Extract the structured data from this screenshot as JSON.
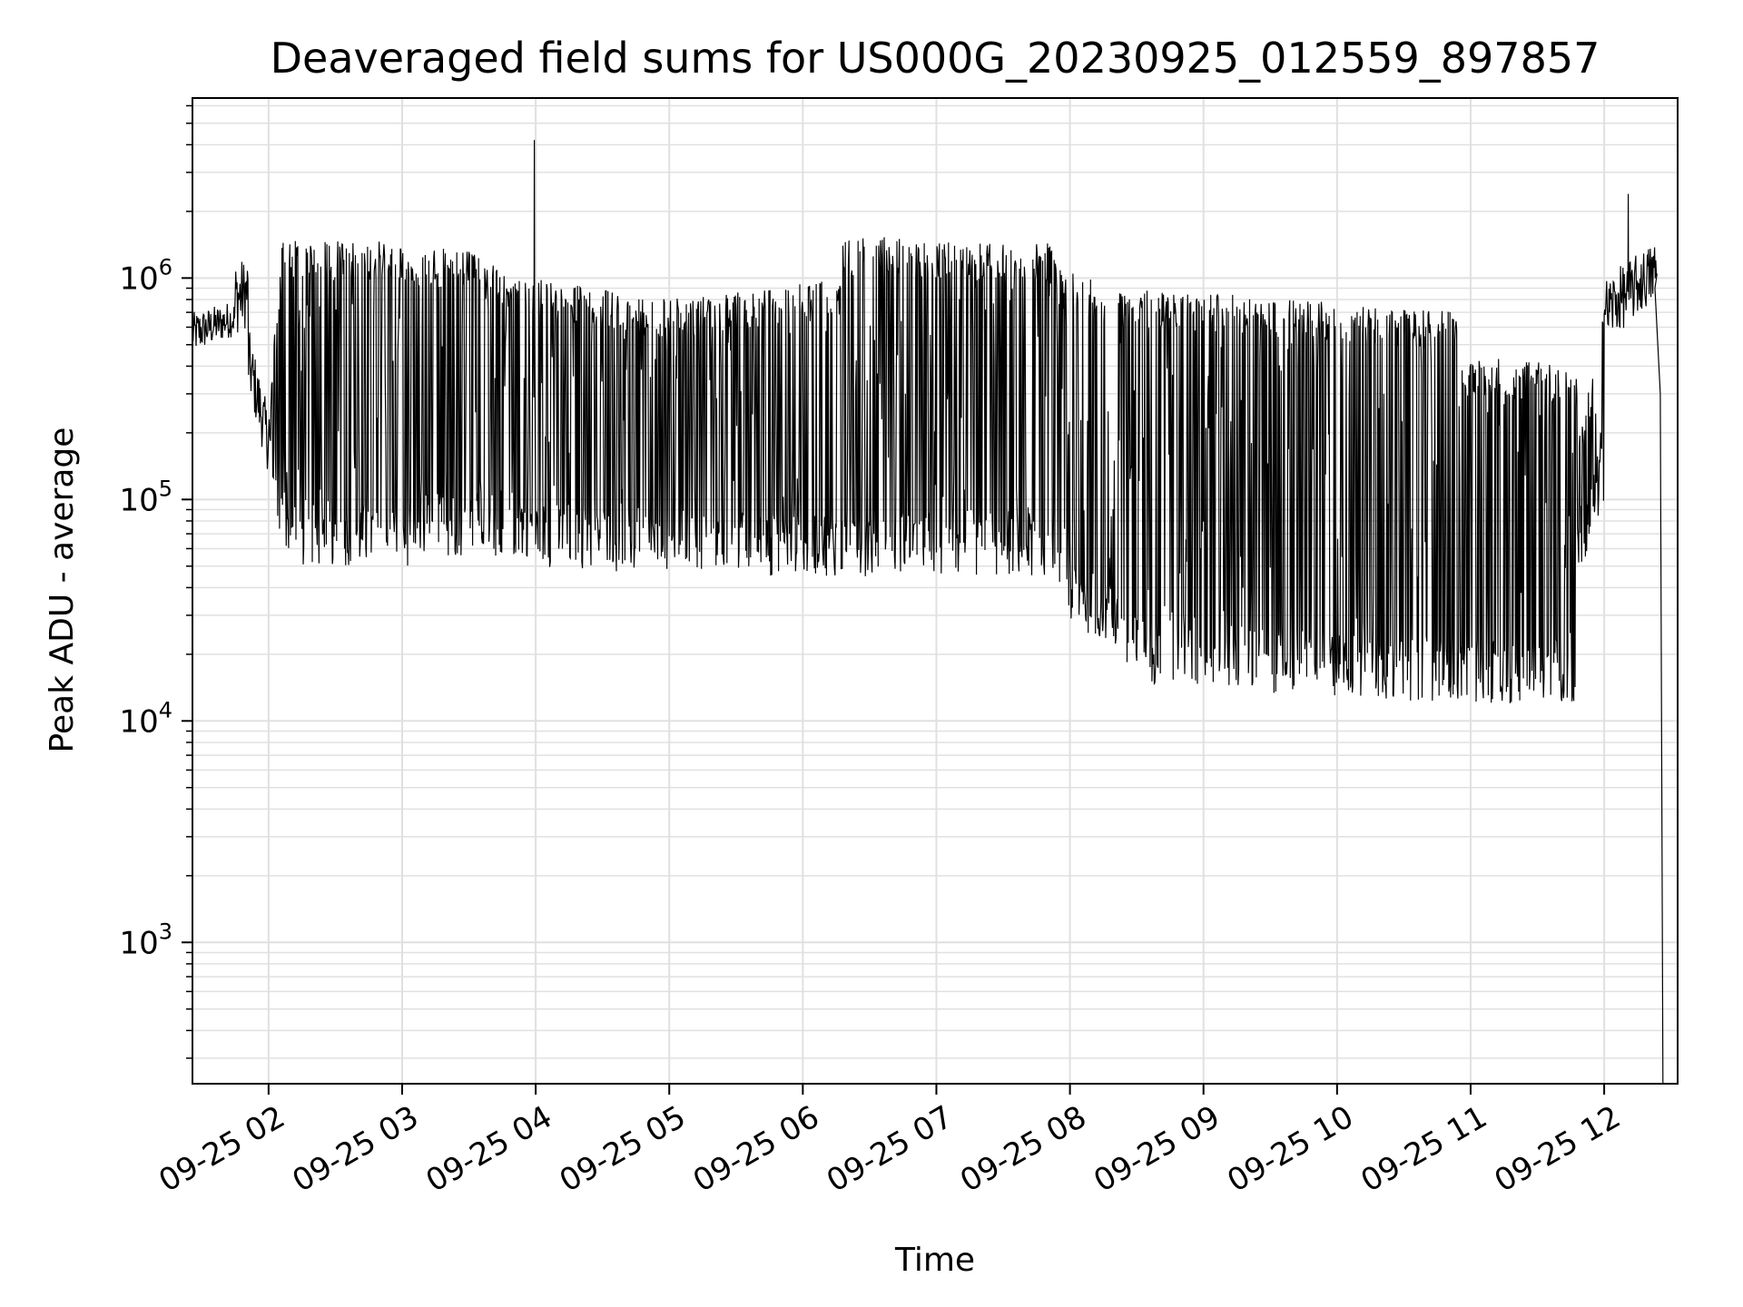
{
  "chart_data": {
    "type": "line",
    "title": "Deaveraged field sums for US000G_20230925_012559_897857",
    "xlabel": "Time",
    "ylabel": "Peak ADU - average",
    "y_scale": "log",
    "grid": true,
    "line_color": "#000000",
    "grid_color": "#e0e0e0",
    "x_tick_labels": [
      "09-25 02",
      "09-25 03",
      "09-25 04",
      "09-25 05",
      "09-25 06",
      "09-25 07",
      "09-25 08",
      "09-25 09",
      "09-25 10",
      "09-25 11",
      "09-25 12"
    ],
    "x_tick_hours": [
      2,
      3,
      4,
      5,
      6,
      7,
      8,
      9,
      10,
      11,
      12
    ],
    "xlim_hours": [
      1.43,
      12.55
    ],
    "ylim": [
      230,
      6500000
    ],
    "y_ticks": [
      {
        "value": 1000,
        "base": "10",
        "exp": "3"
      },
      {
        "value": 10000,
        "base": "10",
        "exp": "4"
      },
      {
        "value": 100000,
        "base": "10",
        "exp": "5"
      },
      {
        "value": 1000000,
        "base": "10",
        "exp": "6"
      }
    ],
    "series": [
      {
        "segments": [
          {
            "x": [
              1.43,
              1.75
            ],
            "low": [
              450000.0,
              550000.0
            ],
            "high": [
              700000.0,
              800000.0
            ]
          },
          {
            "x": [
              1.75,
              1.85
            ],
            "low": [
              550000.0,
              600000.0
            ],
            "high": [
              1200000.0,
              1250000.0
            ]
          },
          {
            "x": [
              1.85,
              2.0
            ],
            "low": [
              300000.0,
              130000.0
            ],
            "high": [
              600000.0,
              250000.0
            ]
          },
          {
            "x": [
              2.0,
              2.1
            ],
            "low": [
              130000.0,
              60000.0
            ],
            "high": [
              300000.0,
              1300000.0
            ]
          },
          {
            "x": [
              2.1,
              3.1
            ],
            "low": [
              50000.0,
              50000.0
            ],
            "high": [
              1500000.0,
              1450000.0
            ]
          },
          {
            "x": [
              3.1,
              3.6
            ],
            "low": [
              55000.0,
              55000.0
            ],
            "high": [
              1400000.0,
              1300000.0
            ]
          },
          {
            "x": [
              3.6,
              4.0
            ],
            "low": [
              55000.0,
              55000.0
            ],
            "high": [
              1200000.0,
              1000000.0
            ]
          },
          {
            "x": [
              4.0,
              5.0
            ],
            "low": [
              50000.0,
              45000.0
            ],
            "high": [
              1000000.0,
              800000.0
            ]
          },
          {
            "x": [
              5.0,
              6.3
            ],
            "low": [
              45000.0,
              45000.0
            ],
            "high": [
              800000.0,
              1000000.0
            ]
          },
          {
            "x": [
              6.3,
              7.9
            ],
            "low": [
              45000.0,
              45000.0
            ],
            "high": [
              1550000.0,
              1450000.0
            ]
          },
          {
            "x": [
              7.9,
              8.4
            ],
            "low": [
              30000.0,
              20000.0
            ],
            "high": [
              1100000.0,
              900000.0
            ]
          },
          {
            "x": [
              8.4,
              9.8
            ],
            "low": [
              15000.0,
              13000.0
            ],
            "high": [
              900000.0,
              800000.0
            ]
          },
          {
            "x": [
              9.8,
              10.9
            ],
            "low": [
              13000.0,
              12000.0
            ],
            "high": [
              800000.0,
              700000.0
            ]
          },
          {
            "x": [
              10.9,
              11.8
            ],
            "low": [
              12000.0,
              12000.0
            ],
            "high": [
              450000.0,
              400000.0
            ]
          },
          {
            "x": [
              11.8,
              12.0
            ],
            "low": [
              40000.0,
              100000.0
            ],
            "high": [
              200000.0,
              700000.0
            ]
          },
          {
            "x": [
              12.0,
              12.4
            ],
            "low": [
              500000.0,
              800000.0
            ],
            "high": [
              1000000.0,
              1500000.0
            ]
          }
        ],
        "spikes": [
          {
            "x": 3.99,
            "y": 4200000.0
          },
          {
            "x": 12.18,
            "y": 2400000.0
          }
        ],
        "tail": [
          {
            "x": 12.38,
            "y": 900000.0
          },
          {
            "x": 12.42,
            "y": 300000.0
          },
          {
            "x": 12.44,
            "y": 230
          }
        ]
      }
    ]
  }
}
